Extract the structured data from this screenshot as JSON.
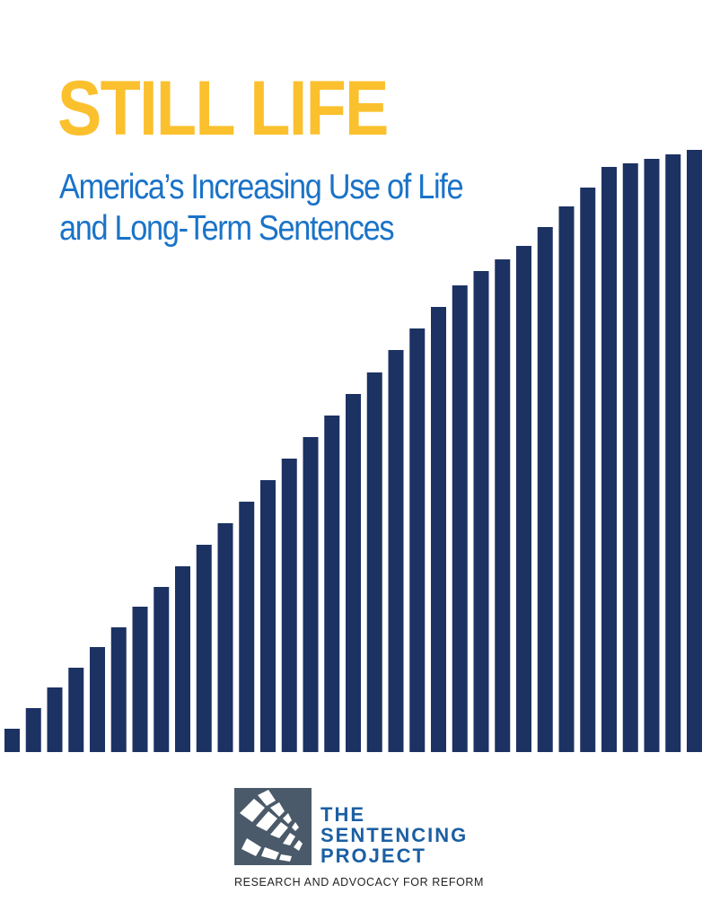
{
  "cover": {
    "title": "STILL LIFE",
    "subtitle": "America’s Increasing Use of Life and Long-Term Sentences",
    "colors": {
      "title": "#fbc02d",
      "subtitle": "#1a73c8",
      "bars": "#1c3263"
    }
  },
  "publisher": {
    "name_line1": "THE",
    "name_line2": "SENTENCING",
    "name_line3": "PROJECT",
    "tagline": "RESEARCH AND ADVOCACY FOR REFORM",
    "logo_icon": "grid-perspective-logo",
    "colors": {
      "name": "#1b5fa3",
      "logo": "#4a5a6a"
    }
  }
}
